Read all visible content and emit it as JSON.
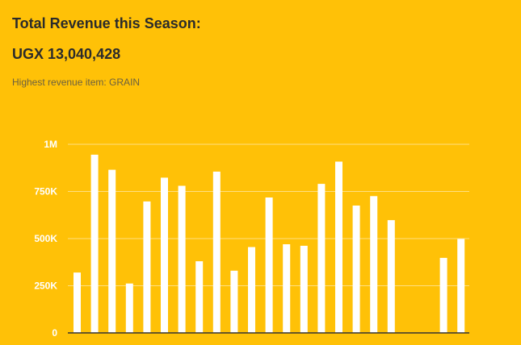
{
  "header": {
    "title": "Total Revenue this Season:",
    "amount": "UGX 13,040,428",
    "highest_item": "Highest revenue item: GRAIN"
  },
  "colors": {
    "background": "#FFC107",
    "bar": "#FFFFFF",
    "grid": "#FFE082",
    "axis": "#333333"
  },
  "chart_data": {
    "type": "bar",
    "title": "",
    "xlabel": "",
    "ylabel": "",
    "ylim": [
      0,
      1000000
    ],
    "yticks": [
      0,
      250000,
      500000,
      750000,
      1000000
    ],
    "ytick_labels": [
      "0",
      "250K",
      "500K",
      "750K",
      "1M"
    ],
    "grid": true,
    "values": [
      320000,
      945000,
      865000,
      262000,
      697000,
      823000,
      780000,
      380000,
      855000,
      330000,
      455000,
      718000,
      470000,
      462000,
      790000,
      908000,
      675000,
      725000,
      598000,
      0,
      0,
      398000,
      498000
    ]
  }
}
